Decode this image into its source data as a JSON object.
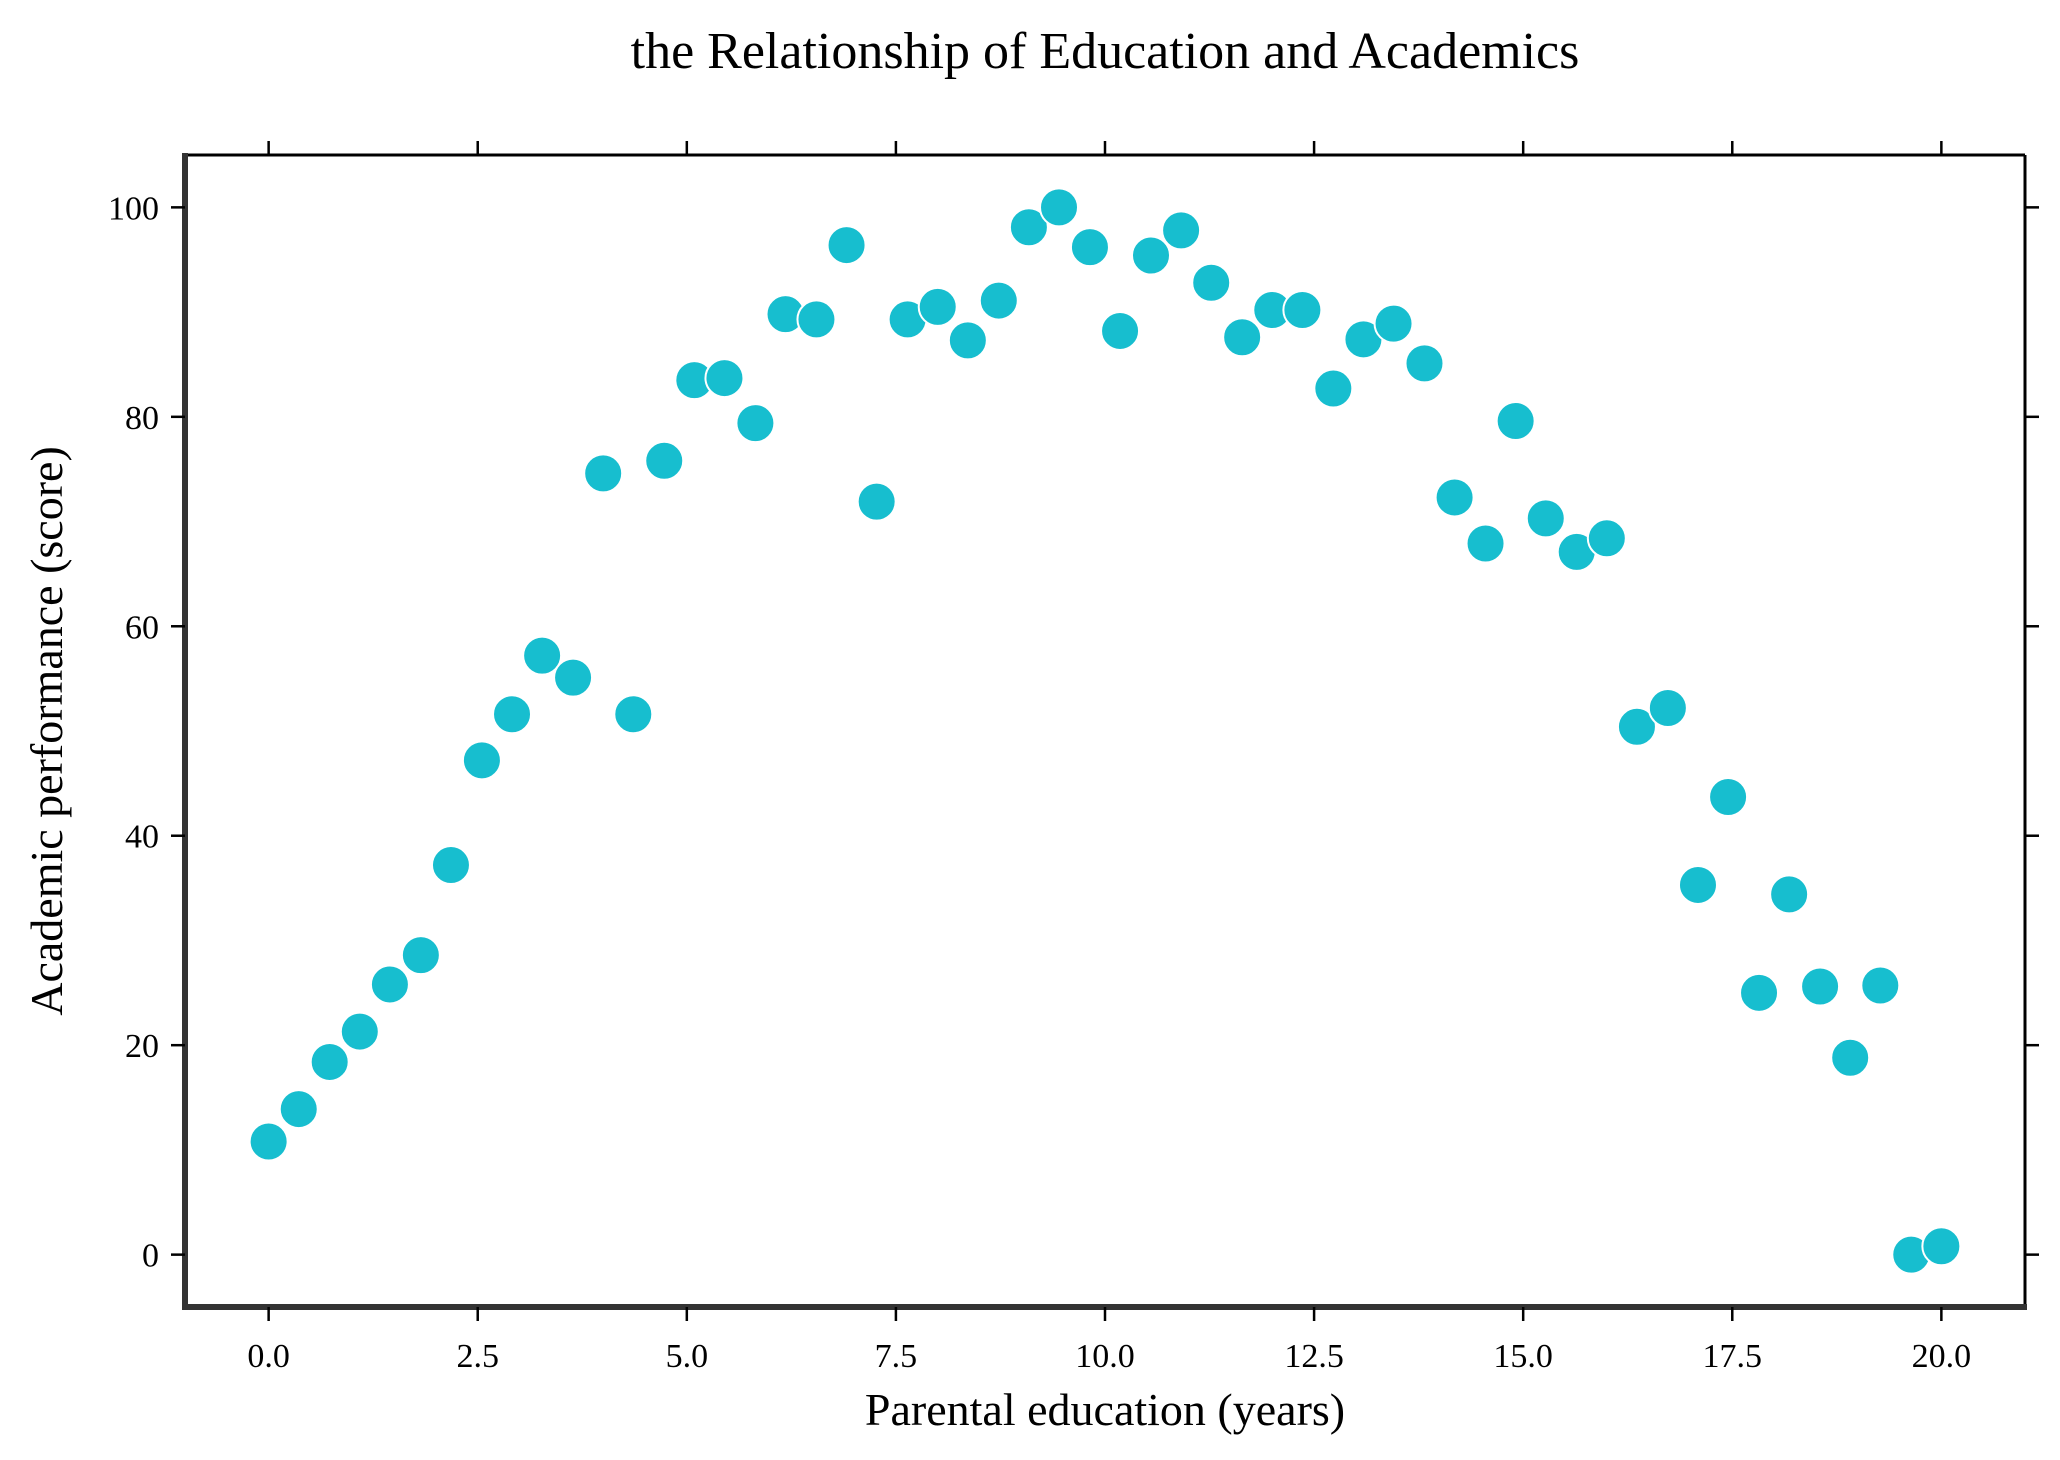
{
  "chart_data": {
    "type": "scatter",
    "title": "the Relationship of Education and Academics",
    "xlabel": "Parental education (years)",
    "ylabel": "Academic performance (score)",
    "xlim": [
      -1.0,
      21.0
    ],
    "ylim": [
      -5.0,
      105.0
    ],
    "xticks": [
      0.0,
      2.5,
      5.0,
      7.5,
      10.0,
      12.5,
      15.0,
      17.5,
      20.0
    ],
    "xtick_labels": [
      "0.0",
      "2.5",
      "5.0",
      "7.5",
      "10.0",
      "12.5",
      "15.0",
      "17.5",
      "20.0"
    ],
    "yticks": [
      0,
      20,
      40,
      60,
      80,
      100
    ],
    "ytick_labels": [
      "0",
      "20",
      "40",
      "60",
      "80",
      "100"
    ],
    "grid": false,
    "marker_color": "#17becf",
    "marker_edge_color": "#ffffff",
    "series": [
      {
        "x": [
          0.0,
          0.36,
          0.73,
          1.09,
          1.45,
          1.82,
          2.18,
          2.55,
          2.91,
          3.27,
          3.64,
          4.0,
          4.36,
          4.73,
          5.09,
          5.45,
          5.82,
          6.18,
          6.55,
          6.91,
          7.27,
          7.64,
          8.0,
          8.36,
          8.73,
          9.09,
          9.45,
          9.82,
          10.18,
          10.55,
          10.91,
          11.27,
          11.64,
          12.0,
          12.36,
          12.73,
          13.09,
          13.45,
          13.82,
          14.18,
          14.55,
          14.91,
          15.27,
          15.64,
          16.0,
          16.36,
          16.73,
          17.09,
          17.45,
          17.82,
          18.18,
          18.55,
          18.91,
          19.27,
          19.64,
          20.0
        ],
        "y": [
          10.8,
          13.9,
          18.4,
          21.3,
          25.8,
          28.6,
          37.2,
          47.2,
          51.6,
          57.2,
          55.1,
          74.6,
          51.6,
          75.8,
          83.5,
          83.7,
          79.4,
          89.8,
          89.3,
          96.4,
          71.9,
          89.3,
          90.5,
          87.3,
          91.1,
          98.1,
          100.0,
          96.2,
          88.2,
          95.4,
          97.8,
          92.8,
          87.6,
          90.2,
          90.2,
          82.7,
          87.4,
          88.9,
          85.1,
          72.3,
          67.9,
          79.6,
          70.3,
          67.1,
          68.4,
          50.4,
          52.2,
          35.3,
          43.7,
          25.0,
          34.4,
          25.6,
          18.8,
          25.7,
          0.0,
          0.8
        ]
      }
    ]
  }
}
